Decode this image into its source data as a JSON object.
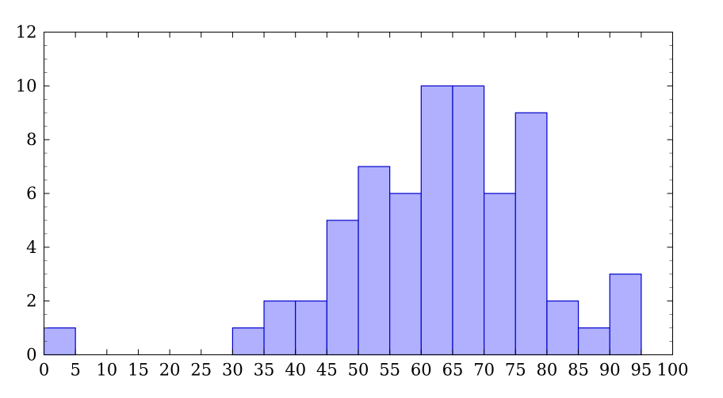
{
  "chart_data": {
    "type": "bar",
    "title": "",
    "xlabel": "",
    "ylabel": "",
    "xlim": [
      0,
      100
    ],
    "ylim": [
      0,
      12
    ],
    "bins": [
      {
        "x0": 0,
        "x1": 5,
        "value": 1
      },
      {
        "x0": 5,
        "x1": 10,
        "value": 0
      },
      {
        "x0": 10,
        "x1": 15,
        "value": 0
      },
      {
        "x0": 15,
        "x1": 20,
        "value": 0
      },
      {
        "x0": 20,
        "x1": 25,
        "value": 0
      },
      {
        "x0": 25,
        "x1": 30,
        "value": 0
      },
      {
        "x0": 30,
        "x1": 35,
        "value": 1
      },
      {
        "x0": 35,
        "x1": 40,
        "value": 2
      },
      {
        "x0": 40,
        "x1": 45,
        "value": 2
      },
      {
        "x0": 45,
        "x1": 50,
        "value": 5
      },
      {
        "x0": 50,
        "x1": 55,
        "value": 7
      },
      {
        "x0": 55,
        "x1": 60,
        "value": 6
      },
      {
        "x0": 60,
        "x1": 65,
        "value": 10
      },
      {
        "x0": 65,
        "x1": 70,
        "value": 10
      },
      {
        "x0": 70,
        "x1": 75,
        "value": 6
      },
      {
        "x0": 75,
        "x1": 80,
        "value": 9
      },
      {
        "x0": 80,
        "x1": 85,
        "value": 2
      },
      {
        "x0": 85,
        "x1": 90,
        "value": 1
      },
      {
        "x0": 90,
        "x1": 95,
        "value": 3
      }
    ],
    "x_ticks": [
      "0",
      "5",
      "10",
      "15",
      "20",
      "25",
      "30",
      "35",
      "40",
      "45",
      "50",
      "55",
      "60",
      "65",
      "70",
      "75",
      "80",
      "85",
      "90",
      "95",
      "100"
    ],
    "y_ticks": [
      "0",
      "2",
      "4",
      "6",
      "8",
      "10",
      "12"
    ],
    "grid": false,
    "bar_color": "#b0b0ff",
    "bar_edge_color": "#0000cc"
  }
}
